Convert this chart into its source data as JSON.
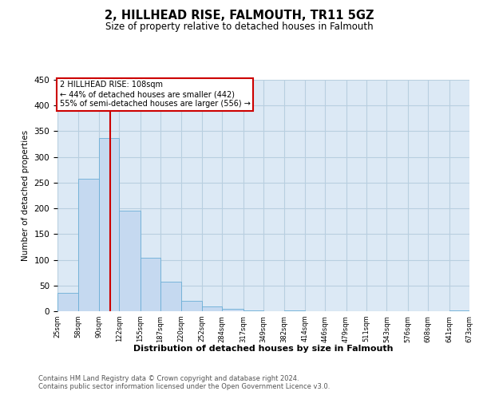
{
  "title": "2, HILLHEAD RISE, FALMOUTH, TR11 5GZ",
  "subtitle": "Size of property relative to detached houses in Falmouth",
  "xlabel": "Distribution of detached houses by size in Falmouth",
  "ylabel": "Number of detached properties",
  "property_size": 108,
  "property_line_label": "2 HILLHEAD RISE: 108sqm",
  "annotation_line1": "← 44% of detached houses are smaller (442)",
  "annotation_line2": "55% of semi-detached houses are larger (556) →",
  "bin_edges": [
    25,
    58,
    90,
    122,
    155,
    187,
    220,
    252,
    284,
    317,
    349,
    382,
    414,
    446,
    479,
    511,
    543,
    576,
    608,
    641,
    673
  ],
  "bar_heights": [
    35,
    257,
    336,
    196,
    104,
    57,
    20,
    10,
    5,
    2,
    0,
    2,
    0,
    0,
    0,
    0,
    0,
    0,
    0,
    2
  ],
  "bar_color": "#c5d9f0",
  "bar_edge_color": "#6baed6",
  "vline_x": 108,
  "vline_color": "#cc0000",
  "ylim": [
    0,
    450
  ],
  "yticks": [
    0,
    50,
    100,
    150,
    200,
    250,
    300,
    350,
    400,
    450
  ],
  "ax_facecolor": "#dce9f5",
  "background_color": "#ffffff",
  "grid_color": "#b8cfe0",
  "footer_line1": "Contains HM Land Registry data © Crown copyright and database right 2024.",
  "footer_line2": "Contains public sector information licensed under the Open Government Licence v3.0.",
  "annotation_box_color": "#cc0000"
}
